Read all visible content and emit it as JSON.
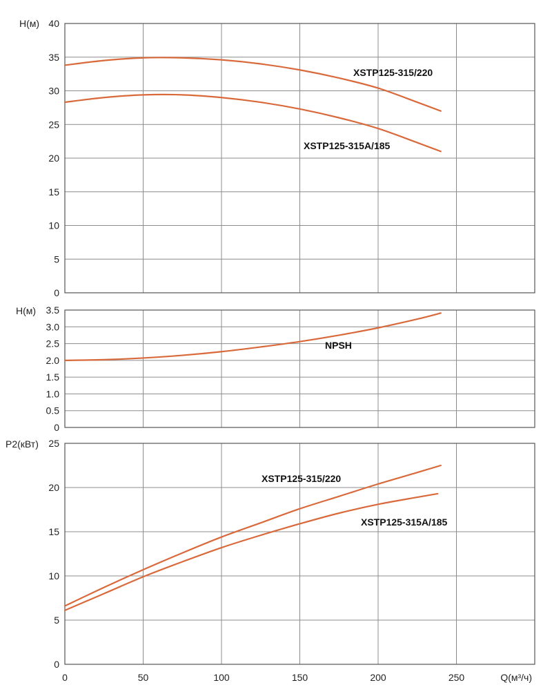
{
  "chart_data": [
    {
      "type": "line",
      "ylabel": "H(м)",
      "ylim": [
        0,
        40
      ],
      "yticks": [
        "0",
        "5",
        "10",
        "15",
        "20",
        "25",
        "30",
        "35",
        "40"
      ],
      "xlim": [
        0,
        300
      ],
      "grid": true,
      "series": [
        {
          "name": "XSTP125-315/220",
          "x": [
            0,
            25,
            50,
            75,
            100,
            125,
            150,
            175,
            200,
            225,
            240
          ],
          "y": [
            33.8,
            34.5,
            34.9,
            34.9,
            34.6,
            34.0,
            33.1,
            31.9,
            30.4,
            28.3,
            27.0
          ]
        },
        {
          "name": "XSTP125-315A/185",
          "x": [
            0,
            25,
            50,
            75,
            100,
            125,
            150,
            175,
            200,
            225,
            240
          ],
          "y": [
            28.3,
            29.0,
            29.4,
            29.4,
            29.0,
            28.3,
            27.3,
            26.0,
            24.4,
            22.3,
            21.0
          ]
        }
      ]
    },
    {
      "type": "line",
      "ylabel": "H(м)",
      "ylim": [
        0,
        3.5
      ],
      "yticks": [
        "0",
        "0.5",
        "1.0",
        "1.5",
        "2.0",
        "2.5",
        "3.0",
        "3.5"
      ],
      "xlim": [
        0,
        300
      ],
      "grid": true,
      "series": [
        {
          "name": "NPSH",
          "x": [
            0,
            25,
            50,
            75,
            100,
            125,
            150,
            175,
            200,
            225,
            240
          ],
          "y": [
            2.0,
            2.02,
            2.07,
            2.15,
            2.26,
            2.4,
            2.56,
            2.75,
            2.97,
            3.23,
            3.41
          ]
        }
      ]
    },
    {
      "type": "line",
      "ylabel": "P2(кВт)",
      "ylim": [
        0,
        25
      ],
      "yticks": [
        "0",
        "5",
        "10",
        "15",
        "20",
        "25"
      ],
      "xlabel": "Q(м³/ч)",
      "xticks": [
        "0",
        "50",
        "100",
        "150",
        "200",
        "250"
      ],
      "xlim": [
        0,
        300
      ],
      "grid": true,
      "series": [
        {
          "name": "XSTP125-315/220",
          "x": [
            0,
            25,
            50,
            75,
            100,
            125,
            150,
            175,
            200,
            225,
            240
          ],
          "y": [
            6.6,
            8.7,
            10.7,
            12.6,
            14.4,
            16.0,
            17.6,
            19.0,
            20.4,
            21.7,
            22.5
          ]
        },
        {
          "name": "XSTP125-315A/185",
          "x": [
            0,
            25,
            50,
            75,
            100,
            125,
            150,
            175,
            200,
            225,
            238
          ],
          "y": [
            6.1,
            8.0,
            9.9,
            11.6,
            13.2,
            14.6,
            15.9,
            17.1,
            18.1,
            18.9,
            19.3
          ]
        }
      ]
    }
  ],
  "curve_color": "#d9693a"
}
